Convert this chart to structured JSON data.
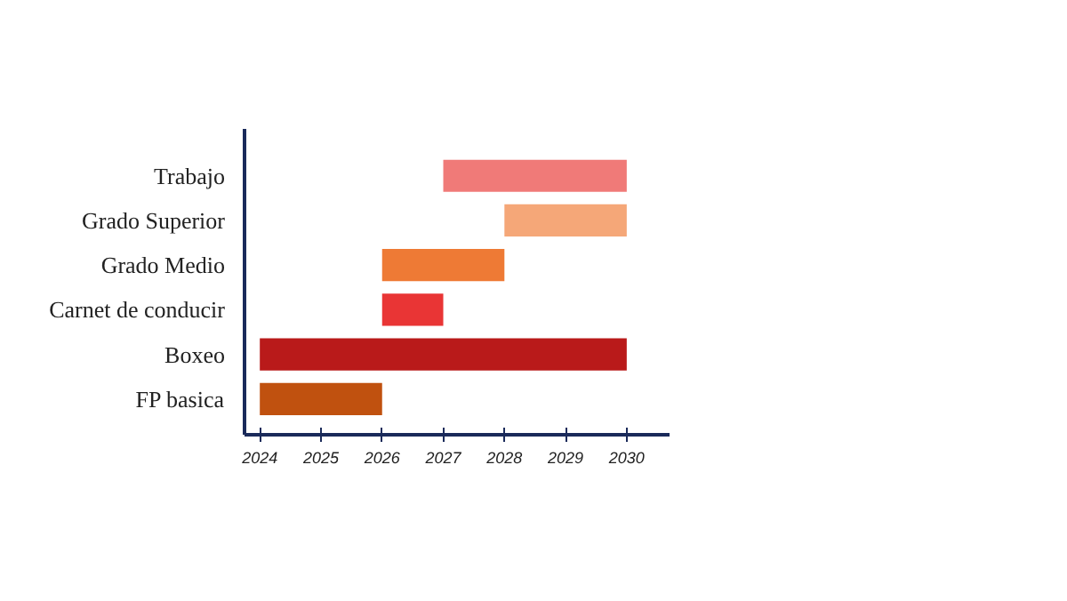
{
  "chart_data": {
    "type": "bar",
    "orientation": "horizontal",
    "categories": [
      "Trabajo",
      "Grado Superior",
      "Grado Medio",
      "Carnet de conducir",
      "Boxeo",
      "FP basica"
    ],
    "base": [
      2027,
      2028,
      2026,
      2026,
      2024,
      2024
    ],
    "values": [
      3,
      2,
      2,
      1,
      6,
      2
    ],
    "colors": [
      "#f07a78",
      "#f5a778",
      "#ee7a35",
      "#e93535",
      "#b91a1a",
      "#c0510f"
    ],
    "xlim": [
      2023.75,
      2030.7
    ],
    "xticks": [
      2024,
      2025,
      2026,
      2027,
      2028,
      2029,
      2030
    ],
    "grid": false
  }
}
